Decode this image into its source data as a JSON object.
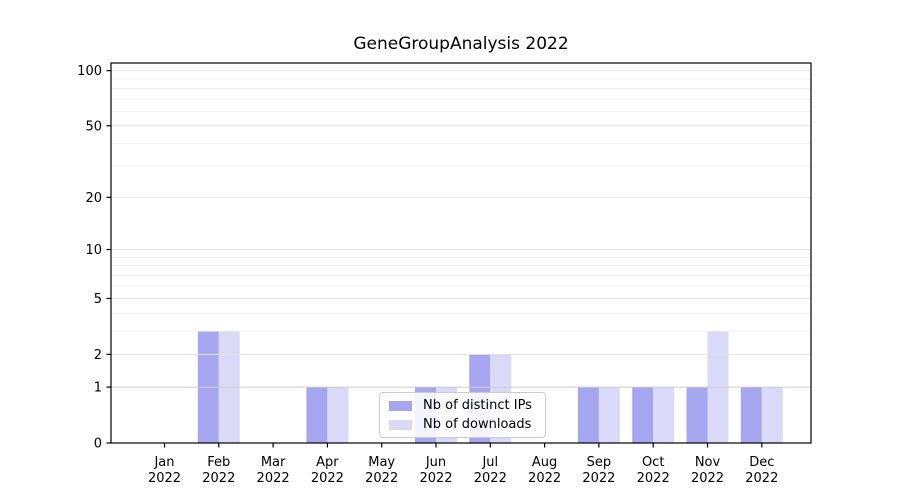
{
  "chart_data": {
    "type": "bar",
    "title": "GeneGroupAnalysis 2022",
    "xlabel": "",
    "ylabel": "",
    "y_scale": "log-like (log1p), linear segment 0 to 1",
    "ylim": [
      0,
      110
    ],
    "grid": "horizontal",
    "legend_position": "inside bottom-center",
    "yticks": [
      0,
      1,
      2,
      5,
      10,
      20,
      50,
      100
    ],
    "y_minor_gridlines": [
      3,
      4,
      6,
      7,
      8,
      9,
      30,
      40,
      60,
      70,
      80,
      90
    ],
    "categories": [
      {
        "month": "Jan",
        "year": "2022"
      },
      {
        "month": "Feb",
        "year": "2022"
      },
      {
        "month": "Mar",
        "year": "2022"
      },
      {
        "month": "Apr",
        "year": "2022"
      },
      {
        "month": "May",
        "year": "2022"
      },
      {
        "month": "Jun",
        "year": "2022"
      },
      {
        "month": "Jul",
        "year": "2022"
      },
      {
        "month": "Aug",
        "year": "2022"
      },
      {
        "month": "Sep",
        "year": "2022"
      },
      {
        "month": "Oct",
        "year": "2022"
      },
      {
        "month": "Nov",
        "year": "2022"
      },
      {
        "month": "Dec",
        "year": "2022"
      }
    ],
    "series": [
      {
        "name": "Nb of distinct IPs",
        "color": "#a6a6f0",
        "values": [
          0,
          3,
          0,
          1,
          0,
          1,
          2,
          0,
          1,
          1,
          1,
          1
        ]
      },
      {
        "name": "Nb of downloads",
        "color": "#dadaf8",
        "values": [
          0,
          3,
          0,
          1,
          0,
          1,
          2,
          0,
          1,
          1,
          3,
          1
        ]
      }
    ],
    "colors": {
      "axis": "#000000",
      "grid_minor": "#efefef",
      "grid_major": "#e4e4e4",
      "grid_baseline_one": "#cdcdcd",
      "tick_label": "#000000"
    }
  }
}
